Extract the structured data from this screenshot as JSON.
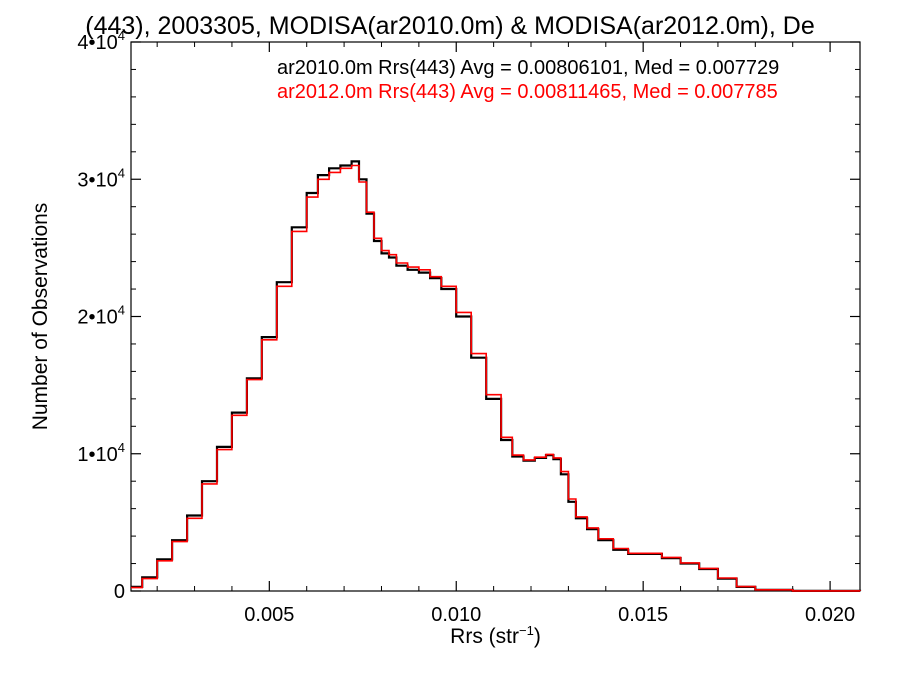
{
  "chart_data": {
    "type": "line",
    "title": "(443), 2003305, MODISA(ar2010.0m) & MODISA(ar2012.0m), De",
    "xlabel": "Rrs (str",
    "xlabel_sup": "−1",
    "xlabel_close": ")",
    "ylabel": "Number of Observations",
    "xlim": [
      0.0013,
      0.0208
    ],
    "ylim": [
      0,
      40000
    ],
    "grid": false,
    "x_ticks": [
      {
        "value": 0.005,
        "label": "0.005"
      },
      {
        "value": 0.01,
        "label": "0.010"
      },
      {
        "value": 0.015,
        "label": "0.015"
      },
      {
        "value": 0.02,
        "label": "0.020"
      }
    ],
    "y_ticks": [
      {
        "value": 0,
        "label": "0",
        "exp": ""
      },
      {
        "value": 10000,
        "label": "1•10",
        "exp": "4"
      },
      {
        "value": 20000,
        "label": "2•10",
        "exp": "4"
      },
      {
        "value": 30000,
        "label": "3•10",
        "exp": "4"
      },
      {
        "value": 40000,
        "label": "4•10",
        "exp": "4"
      }
    ],
    "legend": [
      {
        "text": "ar2010.0m Rrs(443) Avg = 0.00806101, Med = 0.007729",
        "color": "#000000"
      },
      {
        "text": "ar2012.0m Rrs(443) Avg = 0.00811465, Med = 0.007785",
        "color": "#ff0000"
      }
    ],
    "legend_position": "top-right",
    "series": [
      {
        "color": "#000000",
        "x": [
          0.0013,
          0.0016,
          0.002,
          0.0024,
          0.0028,
          0.0032,
          0.0036,
          0.004,
          0.0044,
          0.0048,
          0.0052,
          0.0056,
          0.006,
          0.0063,
          0.0066,
          0.0069,
          0.0072,
          0.0074,
          0.0076,
          0.0078,
          0.008,
          0.0082,
          0.0084,
          0.0087,
          0.009,
          0.0093,
          0.0096,
          0.01,
          0.0104,
          0.0108,
          0.0112,
          0.0115,
          0.0118,
          0.0121,
          0.0124,
          0.0126,
          0.0128,
          0.013,
          0.0132,
          0.0135,
          0.0138,
          0.0142,
          0.0146,
          0.015,
          0.0155,
          0.016,
          0.0165,
          0.017,
          0.0175,
          0.018,
          0.019,
          0.0208
        ],
        "y": [
          300,
          1000,
          2300,
          3700,
          5500,
          8000,
          10500,
          13000,
          15500,
          18500,
          22500,
          26500,
          29000,
          30300,
          30800,
          31000,
          31300,
          30000,
          27500,
          25500,
          24600,
          24300,
          23700,
          23400,
          23200,
          22800,
          22000,
          20000,
          17000,
          14000,
          11000,
          9800,
          9500,
          9700,
          9900,
          9600,
          8500,
          6500,
          5300,
          4500,
          3700,
          3000,
          2700,
          2700,
          2400,
          2000,
          1600,
          900,
          300,
          80,
          10,
          0
        ]
      },
      {
        "color": "#ff0000",
        "x": [
          0.0013,
          0.0016,
          0.002,
          0.0024,
          0.0028,
          0.0032,
          0.0036,
          0.004,
          0.0044,
          0.0048,
          0.0052,
          0.0056,
          0.006,
          0.0063,
          0.0066,
          0.0069,
          0.0072,
          0.0074,
          0.0076,
          0.0078,
          0.008,
          0.0082,
          0.0084,
          0.0087,
          0.009,
          0.0093,
          0.0096,
          0.01,
          0.0104,
          0.0108,
          0.0112,
          0.0115,
          0.0118,
          0.0121,
          0.0124,
          0.0126,
          0.0128,
          0.013,
          0.0132,
          0.0135,
          0.0138,
          0.0142,
          0.0146,
          0.015,
          0.0155,
          0.016,
          0.0165,
          0.017,
          0.0175,
          0.018,
          0.019,
          0.0208
        ],
        "y": [
          250,
          900,
          2200,
          3600,
          5300,
          7800,
          10300,
          12800,
          15400,
          18300,
          22200,
          26200,
          28700,
          30000,
          30500,
          30800,
          31000,
          29800,
          27600,
          25700,
          24800,
          24500,
          23900,
          23600,
          23400,
          22900,
          22200,
          20300,
          17300,
          14300,
          11200,
          9900,
          9550,
          9750,
          9950,
          9700,
          8700,
          6700,
          5400,
          4600,
          3800,
          3100,
          2750,
          2750,
          2450,
          2050,
          1650,
          950,
          320,
          90,
          10,
          0
        ]
      }
    ]
  }
}
